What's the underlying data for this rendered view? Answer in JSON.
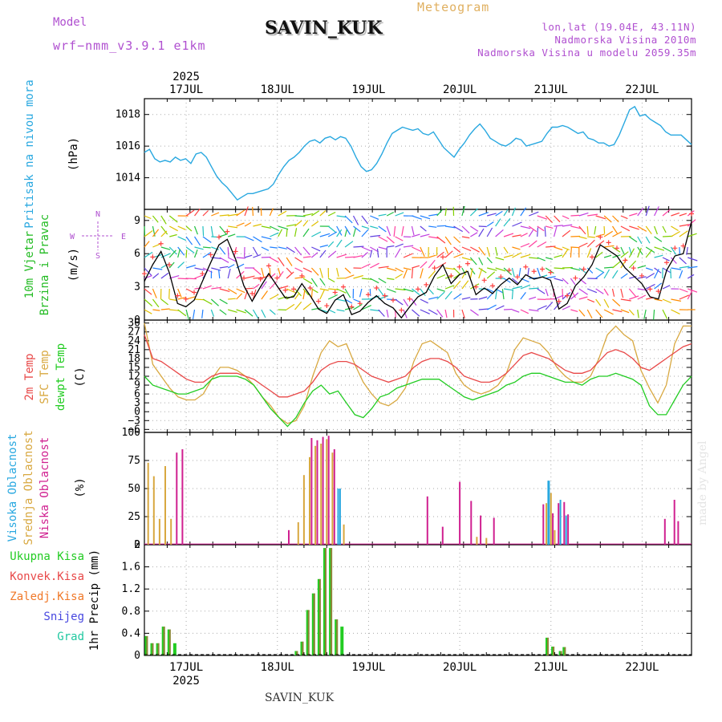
{
  "header": {
    "model_label": "Model",
    "model_name": "wrf−nmm_v3.9.1  e1km",
    "station": "SAVIN_KUK",
    "chart_type_label": "Meteogram",
    "lonlat": "lon,lat (19.04E, 43.11N)",
    "altitude": "Nadmorska Visina 2010m",
    "model_altitude": "Nadmorska Visina u modelu 2059.35m"
  },
  "footer": {
    "station": "SAVIN_KUK",
    "credit": "made by Angel"
  },
  "colors": {
    "pressure": "#29a8e0",
    "wind_label": "#22bb22",
    "temp2m": "#e84848",
    "sfc": "#d8a840",
    "dewpt": "#22cc22",
    "high_cloud": "#29a8e0",
    "mid_cloud": "#d8a840",
    "low_cloud": "#d02090",
    "precip_total": "#22cc22",
    "precip_conv": "#e84848",
    "precip_frz": "#f07828",
    "snow": "#4848e0",
    "graupel": "#20c8a0"
  },
  "chart_data": [
    {
      "type": "line",
      "title": "Pritisak na nivou mora",
      "ylabel": "(hPa)",
      "ylim": [
        1012,
        1019
      ],
      "yticks": [
        1014,
        1016,
        1018
      ],
      "series": [
        {
          "name": "Pritisak na nivou mora",
          "values": [
            1015.6,
            1015.8,
            1015.2,
            1015.0,
            1015.1,
            1015.0,
            1015.3,
            1015.1,
            1015.2,
            1014.9,
            1015.5,
            1015.6,
            1015.3,
            1014.7,
            1014.1,
            1013.7,
            1013.4,
            1013.0,
            1012.6,
            1012.8,
            1013.0,
            1013.0,
            1013.1,
            1013.2,
            1013.3,
            1013.6,
            1014.2,
            1014.7,
            1015.1,
            1015.3,
            1015.6,
            1016.0,
            1016.3,
            1016.4,
            1016.2,
            1016.5,
            1016.6,
            1016.4,
            1016.6,
            1016.5,
            1016.0,
            1015.3,
            1014.7,
            1014.4,
            1014.5,
            1014.9,
            1015.5,
            1016.2,
            1016.8,
            1017.0,
            1017.2,
            1017.1,
            1017.0,
            1017.1,
            1016.8,
            1016.7,
            1016.9,
            1016.4,
            1015.9,
            1015.6,
            1015.3,
            1015.8,
            1016.2,
            1016.7,
            1017.1,
            1017.4,
            1017.0,
            1016.5,
            1016.3,
            1016.1,
            1016.0,
            1016.2,
            1016.5,
            1016.4,
            1016.0,
            1016.1,
            1016.2,
            1016.3,
            1016.8,
            1017.2,
            1017.2,
            1017.3,
            1017.2,
            1017.0,
            1016.8,
            1016.9,
            1016.5,
            1016.4,
            1016.2,
            1016.2,
            1016.0,
            1016.1,
            1016.7,
            1017.5,
            1018.3,
            1018.5,
            1017.9,
            1018.0,
            1017.7,
            1017.5,
            1017.3,
            1016.9,
            1016.7,
            1016.7,
            1016.7,
            1016.4,
            1016.1
          ]
        }
      ]
    },
    {
      "type": "line",
      "title": "10m Vjetar Brzina i Pravac",
      "ylabel": "(m/s)",
      "ylim": [
        0,
        10
      ],
      "yticks": [
        0,
        3,
        6,
        9
      ],
      "compass_labels": [
        "N",
        "W",
        "E",
        "S"
      ],
      "series": [
        {
          "name": "10m Vjetar Brzina",
          "values": [
            3.5,
            5.0,
            6.2,
            4.3,
            1.5,
            1.2,
            1.8,
            3.5,
            5.2,
            6.8,
            7.3,
            5.5,
            3.1,
            1.7,
            3.0,
            4.2,
            3.1,
            2.0,
            2.1,
            3.3,
            2.2,
            1.0,
            0.6,
            1.8,
            2.3,
            0.5,
            0.8,
            1.6,
            2.2,
            1.5,
            1.1,
            0.2,
            1.2,
            2.1,
            2.5,
            4.0,
            5.0,
            3.3,
            4.1,
            4.4,
            2.3,
            2.9,
            2.4,
            3.2,
            3.8,
            3.2,
            4.1,
            3.7,
            3.9,
            3.6,
            1.0,
            1.5,
            3.1,
            3.9,
            5.0,
            6.8,
            6.3,
            5.8,
            4.7,
            4.0,
            3.3,
            2.1,
            1.9,
            4.5,
            5.8,
            6.0,
            8.9
          ]
        }
      ]
    },
    {
      "type": "line",
      "ylabel": "(C)",
      "ylim": [
        -7,
        31
      ],
      "yticks": [
        -6,
        -3,
        0,
        3,
        6,
        9,
        12,
        15,
        18,
        21,
        24,
        27,
        30
      ],
      "series": [
        {
          "name": "2m Temp",
          "values": [
            26,
            18,
            17,
            15,
            13,
            11,
            10,
            10,
            12,
            13,
            13,
            13,
            12,
            11,
            9,
            7,
            5,
            5,
            6,
            7,
            10,
            14,
            16,
            17,
            17,
            16,
            14,
            12,
            11,
            10,
            11,
            12,
            15,
            17,
            18,
            18,
            17,
            15,
            12,
            11,
            10,
            10,
            11,
            13,
            16,
            19,
            20,
            19,
            18,
            16,
            14,
            13,
            13,
            14,
            17,
            20,
            21,
            20,
            18,
            15,
            14,
            16,
            18,
            20,
            22,
            23
          ]
        },
        {
          "name": "SFC Temp",
          "values": [
            30,
            16,
            12,
            8,
            5,
            4,
            4,
            6,
            11,
            15,
            15,
            14,
            12,
            9,
            5,
            2,
            -2,
            -4,
            -3,
            2,
            12,
            20,
            24,
            22,
            23,
            16,
            10,
            6,
            3,
            2,
            4,
            8,
            17,
            23,
            24,
            22,
            20,
            13,
            9,
            7,
            6,
            7,
            9,
            13,
            21,
            25,
            24,
            23,
            20,
            15,
            12,
            10,
            10,
            12,
            18,
            26,
            29,
            26,
            24,
            14,
            8,
            3,
            9,
            23,
            29,
            29
          ]
        },
        {
          "name": "dewpt Temp",
          "values": [
            12,
            9,
            8,
            7,
            6,
            6,
            7,
            8,
            11,
            12,
            12,
            12,
            11,
            9,
            5,
            1,
            -2,
            -5,
            -2,
            3,
            7,
            9,
            6,
            7,
            3,
            -1,
            -2,
            1,
            5,
            6,
            8,
            9,
            10,
            11,
            11,
            11,
            9,
            7,
            5,
            4,
            5,
            6,
            7,
            9,
            10,
            12,
            13,
            13,
            12,
            11,
            10,
            10,
            9,
            11,
            12,
            12,
            13,
            12,
            11,
            9,
            2,
            -1,
            -1,
            4,
            9,
            12
          ]
        }
      ]
    },
    {
      "type": "bar",
      "ylabel": "(%)",
      "ylim": [
        0,
        100
      ],
      "yticks": [
        0,
        25,
        50,
        75,
        100
      ],
      "series": [
        {
          "name": "Visoka Oblacnost",
          "bars": [
            [
              51.0,
              50
            ],
            [
              51.5,
              50
            ],
            [
              106.3,
              57
            ],
            [
              106.5,
              57
            ],
            [
              109.5,
              40
            ],
            [
              111.0,
              26
            ]
          ]
        },
        {
          "name": "Srednja Oblacnost",
          "bars": [
            [
              1.0,
              73
            ],
            [
              2.5,
              61
            ],
            [
              4.0,
              23
            ],
            [
              5.5,
              70
            ],
            [
              7.0,
              23
            ],
            [
              40.5,
              20
            ],
            [
              42.0,
              62
            ],
            [
              43.5,
              78
            ],
            [
              45.0,
              88
            ],
            [
              46.5,
              90
            ],
            [
              48.0,
              94
            ],
            [
              49.5,
              82
            ],
            [
              52.5,
              18
            ],
            [
              87.5,
              7
            ],
            [
              90.0,
              6
            ],
            [
              105.8,
              37
            ],
            [
              107.0,
              46
            ],
            [
              108.0,
              13
            ]
          ]
        },
        {
          "name": "Niska Oblacnost",
          "bars": [
            [
              8.5,
              82
            ],
            [
              10.0,
              85
            ],
            [
              38.0,
              13
            ],
            [
              44.0,
              95
            ],
            [
              45.5,
              93
            ],
            [
              47.0,
              96
            ],
            [
              48.5,
              97
            ],
            [
              50.0,
              85
            ],
            [
              74.5,
              43
            ],
            [
              78.5,
              16
            ],
            [
              83.0,
              56
            ],
            [
              86.0,
              39
            ],
            [
              88.5,
              26
            ],
            [
              92.0,
              24
            ],
            [
              105.0,
              36
            ],
            [
              107.5,
              28
            ],
            [
              109.0,
              37
            ],
            [
              110.5,
              38
            ],
            [
              111.5,
              27
            ],
            [
              137.0,
              23
            ],
            [
              139.5,
              40
            ],
            [
              140.5,
              21
            ]
          ]
        }
      ]
    },
    {
      "type": "bar",
      "ylabel": "1hr Precip (mm)",
      "ylim": [
        0,
        2
      ],
      "yticks": [
        0,
        0.4,
        0.8,
        1.2,
        1.6,
        2
      ],
      "series": [
        {
          "name": "Ukupna Kisa",
          "bars": [
            [
              0.5,
              0.35
            ],
            [
              2.0,
              0.22
            ],
            [
              3.5,
              0.22
            ],
            [
              5.0,
              0.52
            ],
            [
              6.5,
              0.47
            ],
            [
              8.0,
              0.22
            ],
            [
              40.0,
              0.08
            ],
            [
              41.5,
              0.25
            ],
            [
              43.0,
              0.82
            ],
            [
              44.5,
              1.12
            ],
            [
              46.0,
              1.38
            ],
            [
              47.5,
              1.94
            ],
            [
              49.0,
              1.94
            ],
            [
              50.5,
              0.65
            ],
            [
              52.0,
              0.52
            ],
            [
              106.0,
              0.32
            ],
            [
              107.5,
              0.16
            ],
            [
              109.5,
              0.08
            ],
            [
              110.5,
              0.15
            ]
          ]
        },
        {
          "name": "Konvek.Kisa",
          "bars": [
            [
              0.5,
              0.35
            ],
            [
              2.0,
              0.22
            ],
            [
              3.5,
              0.22
            ],
            [
              5.0,
              0.52
            ],
            [
              6.5,
              0.47
            ],
            [
              40.0,
              0.08
            ],
            [
              41.5,
              0.25
            ],
            [
              43.0,
              0.82
            ],
            [
              44.5,
              1.12
            ],
            [
              46.0,
              1.38
            ],
            [
              47.5,
              1.94
            ],
            [
              49.0,
              1.94
            ],
            [
              50.5,
              0.65
            ],
            [
              106.0,
              0.32
            ],
            [
              107.5,
              0.16
            ],
            [
              109.5,
              0.08
            ],
            [
              110.5,
              0.15
            ]
          ]
        }
      ]
    }
  ]
}
